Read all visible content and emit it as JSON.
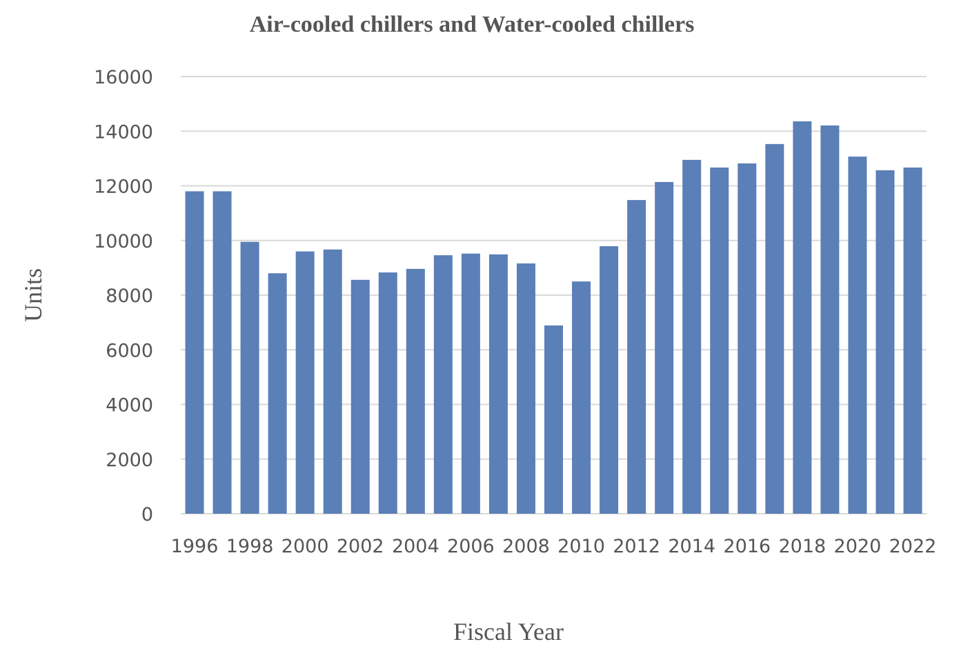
{
  "chart_data": {
    "type": "bar",
    "title": "Air-cooled chillers and Water-cooled chillers",
    "xlabel": "Fiscal Year",
    "ylabel": "Units",
    "ylim": [
      0,
      16000
    ],
    "yticks": [
      0,
      2000,
      4000,
      6000,
      8000,
      10000,
      12000,
      14000,
      16000
    ],
    "grid": true,
    "legend": "none",
    "bar_color": "#5b7fb7",
    "categories": [
      "1996",
      "1997",
      "1998",
      "1999",
      "2000",
      "2001",
      "2002",
      "2003",
      "2004",
      "2005",
      "2006",
      "2007",
      "2008",
      "2009",
      "2010",
      "2011",
      "2012",
      "2013",
      "2014",
      "2015",
      "2016",
      "2017",
      "2018",
      "2019",
      "2020",
      "2021",
      "2022"
    ],
    "xtick_labels": [
      "1996",
      "1998",
      "2000",
      "2002",
      "2004",
      "2006",
      "2008",
      "2010",
      "2012",
      "2014",
      "2016",
      "2018",
      "2020",
      "2022"
    ],
    "values": [
      11800,
      11800,
      9950,
      8800,
      9600,
      9670,
      8560,
      8830,
      8960,
      9460,
      9520,
      9490,
      9160,
      6890,
      8500,
      9790,
      11480,
      12140,
      12950,
      12670,
      12820,
      13530,
      14360,
      14210,
      13070,
      12570,
      12670
    ]
  }
}
